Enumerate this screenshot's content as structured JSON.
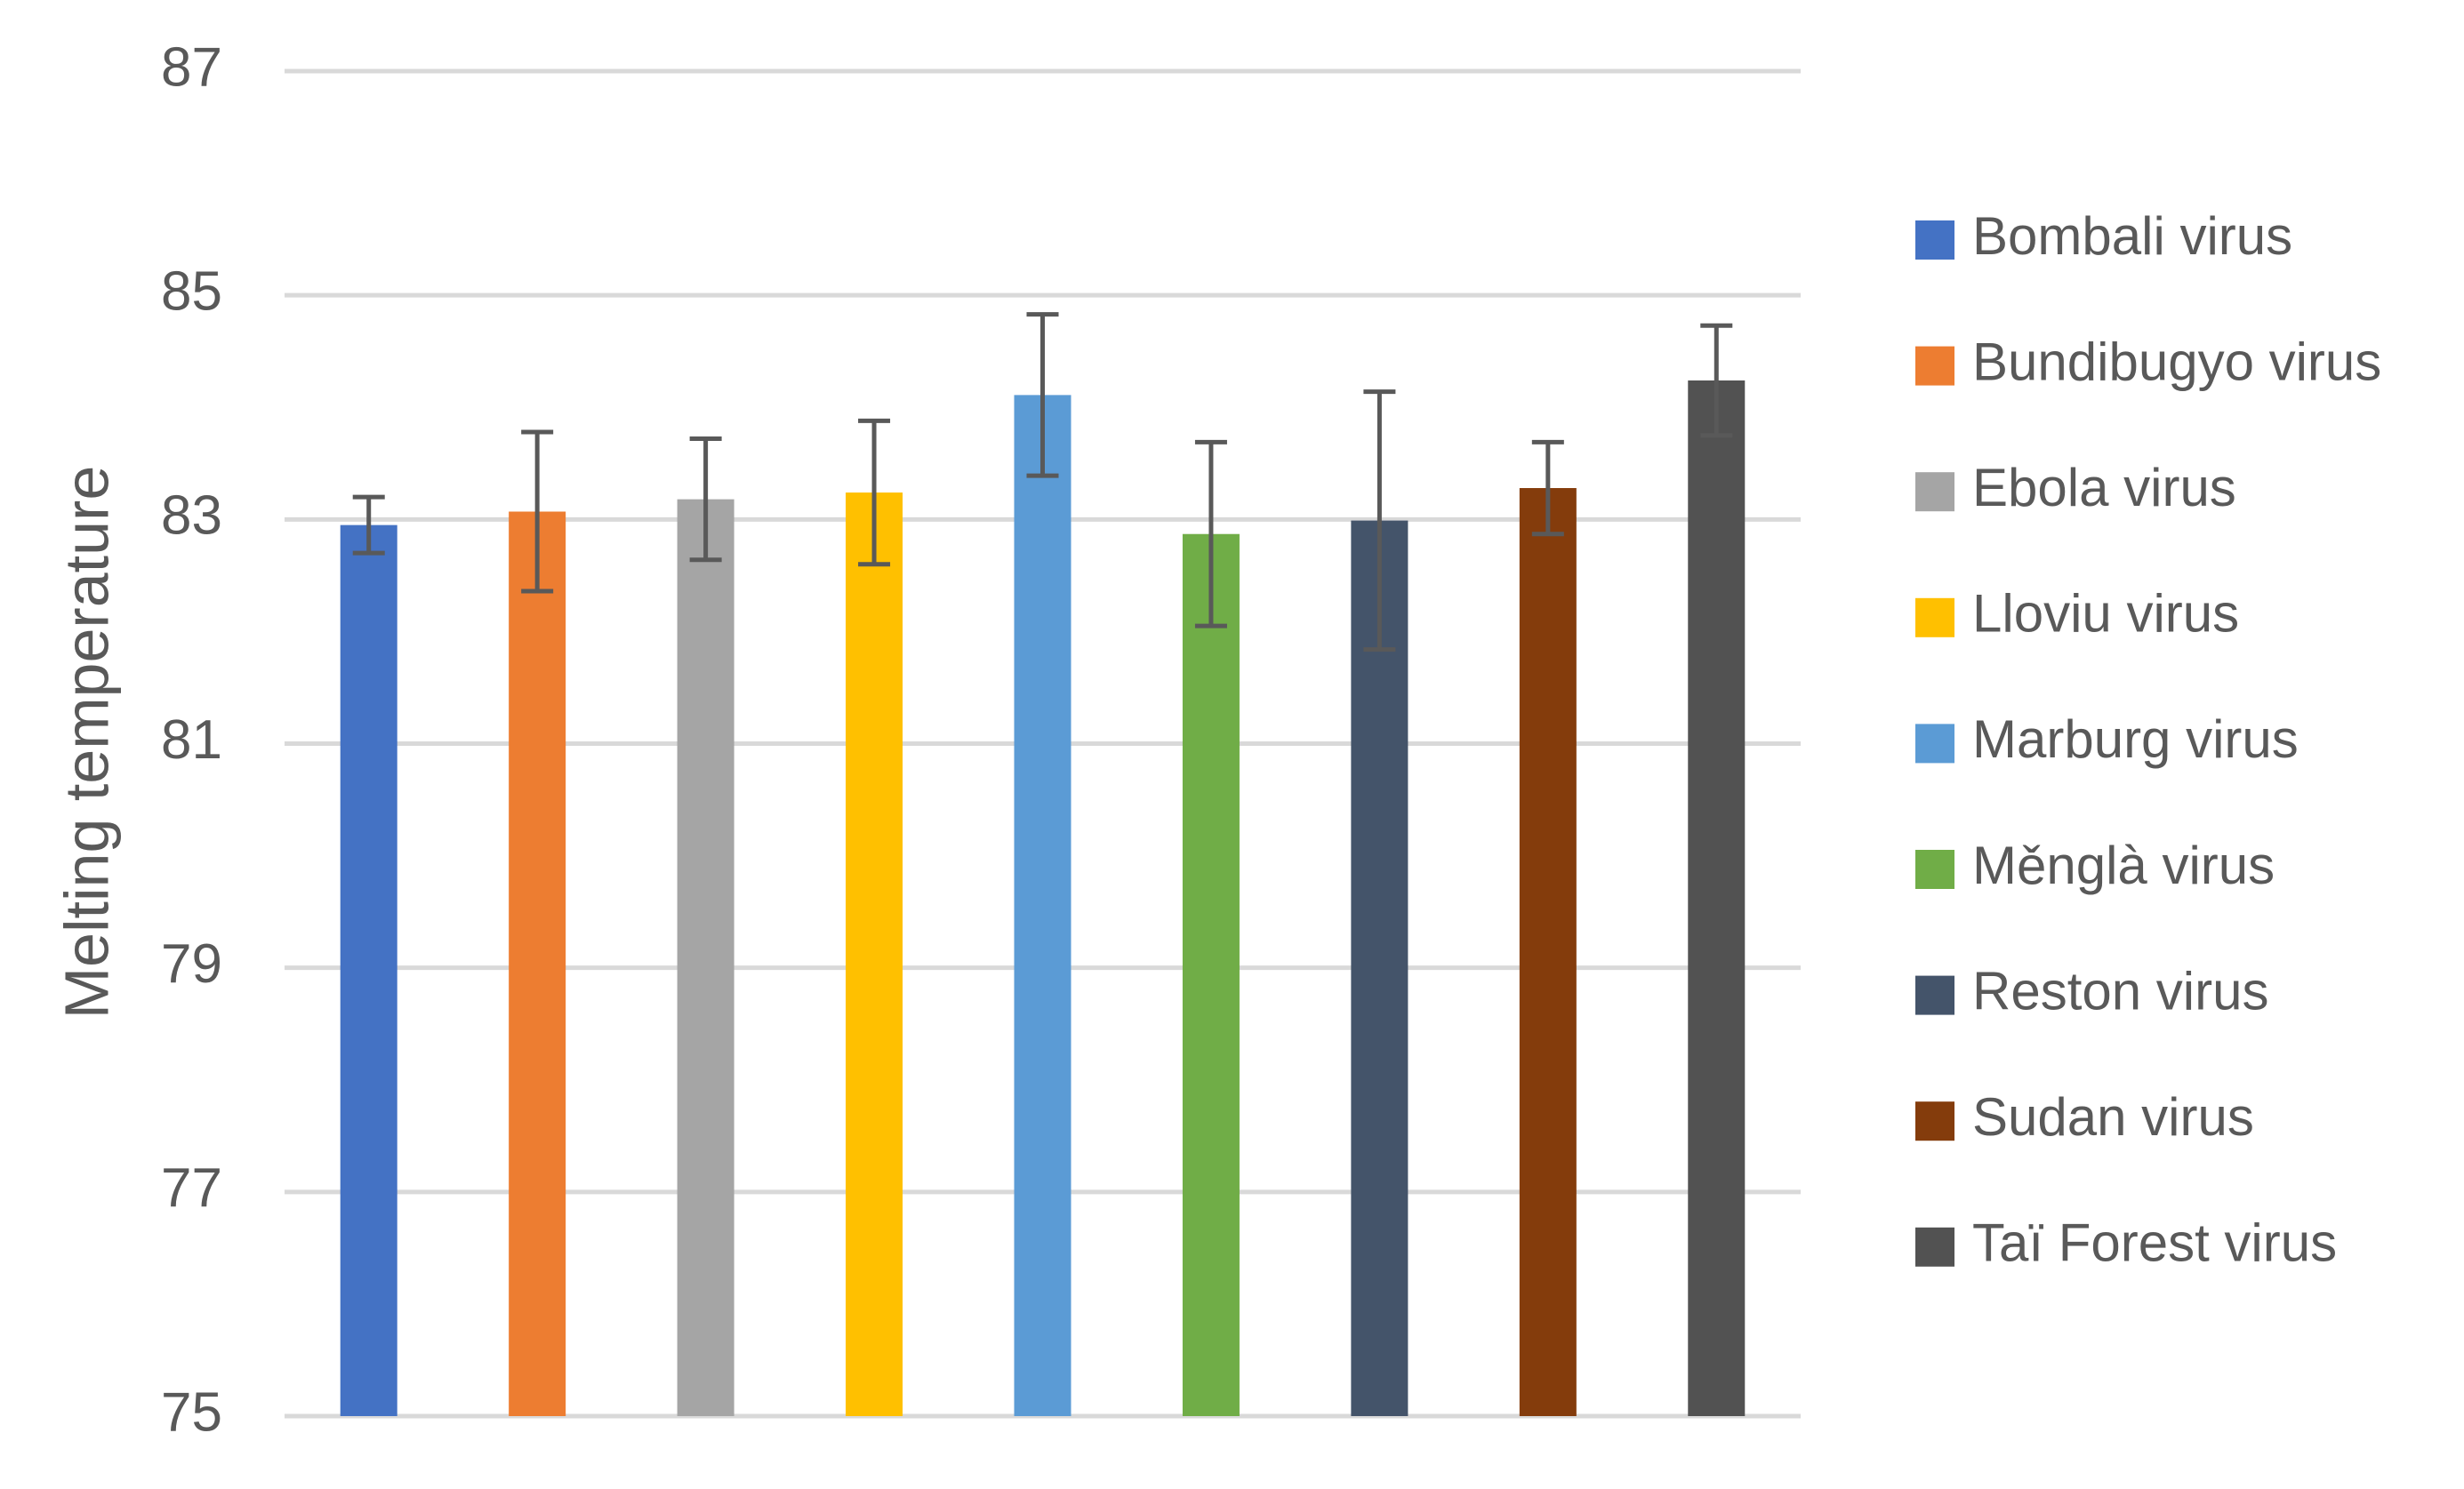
{
  "chart_data": {
    "type": "bar",
    "y_label": "Melting temperature",
    "ylim": [
      75,
      87
    ],
    "yticks": [
      75,
      77,
      79,
      81,
      83,
      85,
      87
    ],
    "grid": true,
    "legend": "right",
    "series": [
      {
        "name": "Bombali virus",
        "color": "#4472c4",
        "values": [
          82.95
        ],
        "errors": [
          0.25
        ]
      },
      {
        "name": "Bundibugyo virus",
        "color": "#ed7d31",
        "values": [
          83.07
        ],
        "errors": [
          0.71
        ]
      },
      {
        "name": "Ebola virus",
        "color": "#a5a5a5",
        "values": [
          83.18
        ],
        "errors": [
          0.54
        ]
      },
      {
        "name": "Lloviu virus",
        "color": "#ffc000",
        "values": [
          83.24
        ],
        "errors": [
          0.64
        ]
      },
      {
        "name": "Marburg virus",
        "color": "#5b9bd5",
        "values": [
          84.11
        ],
        "errors": [
          0.72
        ]
      },
      {
        "name": "Měnglà virus",
        "color": "#70ad47",
        "values": [
          82.87
        ],
        "errors": [
          0.82
        ]
      },
      {
        "name": "Reston virus",
        "color": "#44546a",
        "values": [
          82.99
        ],
        "errors": [
          1.15
        ]
      },
      {
        "name": "Sudan virus",
        "color": "#843c0c",
        "values": [
          83.28
        ],
        "errors": [
          0.41
        ]
      },
      {
        "name": "Taï Forest virus",
        "color": "#525252",
        "values": [
          84.24
        ],
        "errors": [
          0.49
        ]
      }
    ]
  }
}
